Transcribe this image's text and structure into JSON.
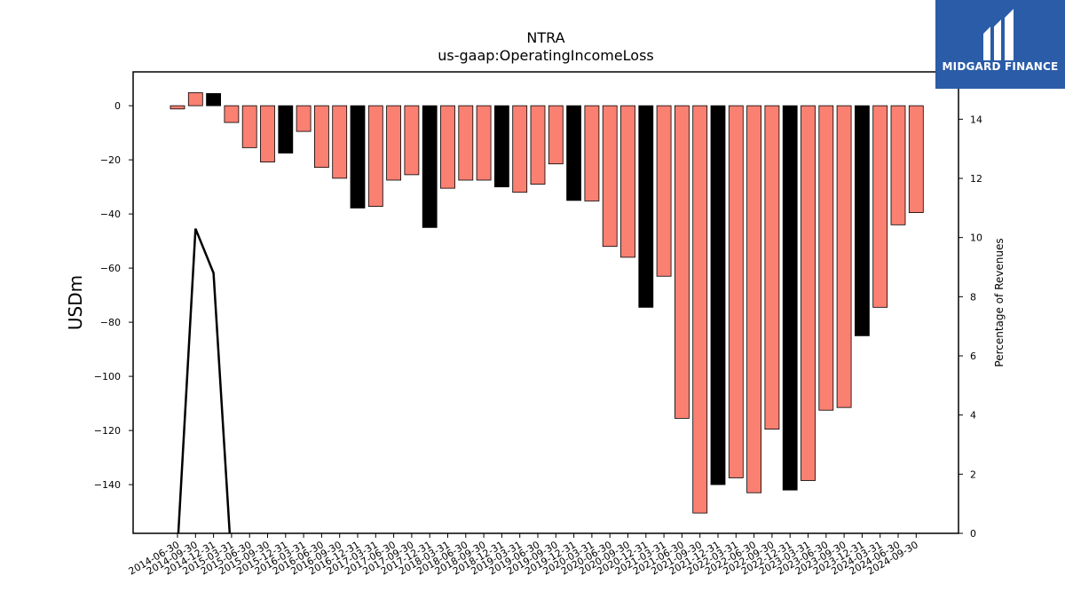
{
  "brand": {
    "name": "MIDGARD FINANCE",
    "logo_icon": "midgard-logo-icon"
  },
  "chart_data": {
    "type": "bar",
    "title": "NTRA",
    "subtitle": "us-gaap:OperatingIncomeLoss",
    "ylabel": "USDm",
    "y2label": "Percentage of Revenues",
    "ylim": [
      -158,
      12.5
    ],
    "y2lim": [
      0,
      15.6
    ],
    "yticks": [
      0,
      -20,
      -40,
      -60,
      -80,
      -100,
      -120,
      -140
    ],
    "y2ticks": [
      0,
      2,
      4,
      6,
      8,
      10,
      12,
      14
    ],
    "grid": false,
    "colors": {
      "quarter": "#fa8072",
      "year_end": "#000000",
      "line": "#000000"
    },
    "categories": [
      "2014-06-30",
      "2014-09-30",
      "2014-12-31",
      "2015-03-31",
      "2015-06-30",
      "2015-09-30",
      "2015-12-31",
      "2016-03-31",
      "2016-06-30",
      "2016-09-30",
      "2016-12-31",
      "2017-03-31",
      "2017-06-30",
      "2017-09-30",
      "2017-12-31",
      "2018-03-31",
      "2018-06-30",
      "2018-09-30",
      "2018-12-31",
      "2019-03-31",
      "2019-06-30",
      "2019-09-30",
      "2019-12-31",
      "2020-03-31",
      "2020-06-30",
      "2020-09-30",
      "2020-12-31",
      "2021-03-31",
      "2021-06-30",
      "2021-09-30",
      "2021-12-31",
      "2022-03-31",
      "2022-06-30",
      "2022-09-30",
      "2022-12-31",
      "2023-03-31",
      "2023-06-30",
      "2023-09-30",
      "2023-12-31",
      "2024-03-31",
      "2024-06-30",
      "2024-09-30"
    ],
    "values": [
      -1.2,
      4.8,
      4.5,
      -6.2,
      -15.5,
      -20.8,
      -17.5,
      -9.5,
      -22.8,
      -26.8,
      -37.8,
      -37.2,
      -27.5,
      -25.5,
      -45.0,
      -30.5,
      -27.5,
      -27.5,
      -30.0,
      -32.0,
      -29.0,
      -21.5,
      -35.0,
      -35.2,
      -52.0,
      -56.0,
      -74.5,
      -63.0,
      -115.5,
      -150.5,
      -140.0,
      -137.5,
      -143.0,
      -119.5,
      -142.0,
      -138.5,
      -112.5,
      -111.5,
      -85.0,
      -74.5,
      -44.0,
      -39.5
    ],
    "year_end": [
      false,
      false,
      true,
      false,
      false,
      false,
      true,
      false,
      false,
      false,
      true,
      false,
      false,
      false,
      true,
      false,
      false,
      false,
      true,
      false,
      false,
      false,
      true,
      false,
      false,
      false,
      true,
      false,
      false,
      false,
      true,
      false,
      false,
      false,
      true,
      false,
      false,
      false,
      true,
      false,
      false,
      false
    ],
    "line_series": {
      "name": "",
      "x": [
        "2014-06-30",
        "2014-09-30",
        "2014-12-31",
        "2015-03-31"
      ],
      "values": [
        -0.5,
        10.3,
        8.8,
        -1.0
      ]
    }
  }
}
